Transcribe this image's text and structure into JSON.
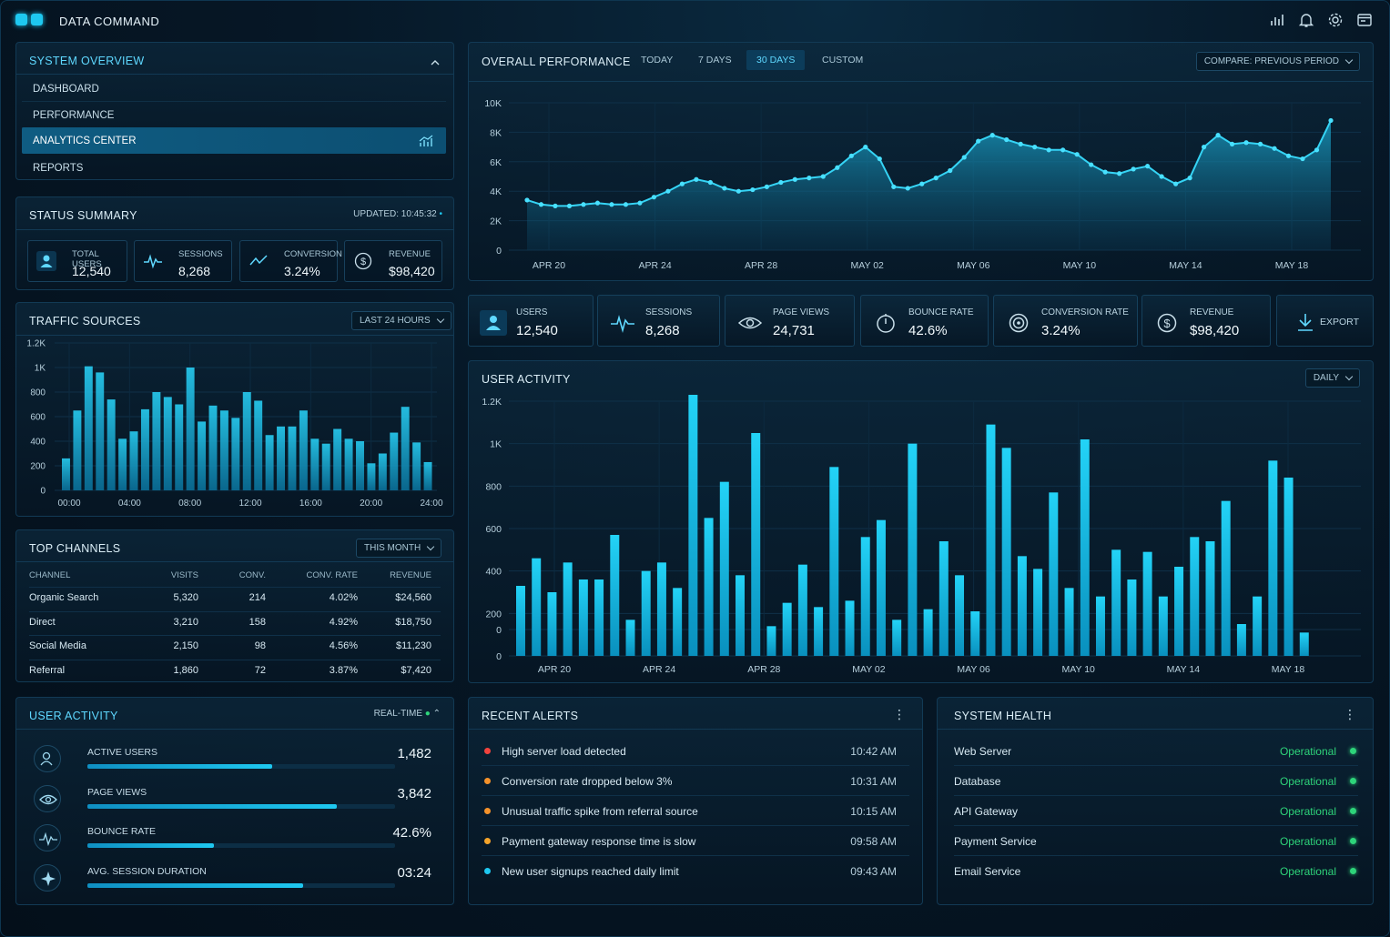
{
  "app": {
    "title": "DATA COMMAND"
  },
  "topbar": {
    "icons": [
      "bar-chart-icon",
      "bell-icon",
      "gear-icon",
      "window-icon"
    ]
  },
  "nav": {
    "title": "SYSTEM OVERVIEW",
    "items": [
      {
        "label": "DASHBOARD",
        "active": false
      },
      {
        "label": "PERFORMANCE",
        "active": false
      },
      {
        "label": "ANALYTICS CENTER",
        "active": true
      },
      {
        "label": "REPORTS",
        "active": false
      }
    ]
  },
  "status": {
    "title": "STATUS SUMMARY",
    "updated": "UPDATED: 10:45:32",
    "items": [
      {
        "label": "TOTAL USERS",
        "value": "12,540",
        "icon": "user-icon"
      },
      {
        "label": "SESSIONS",
        "value": "8,268",
        "icon": "pulse-icon"
      },
      {
        "label": "CONVERSION",
        "value": "3.24%",
        "icon": "trend-icon"
      },
      {
        "label": "REVENUE",
        "value": "$98,420",
        "icon": "dollar-icon"
      }
    ]
  },
  "traffic": {
    "title": "TRAFFIC SOURCES",
    "range": "LAST 24 HOURS",
    "chart_data": {
      "type": "bar",
      "x_ticks": [
        "00:00",
        "04:00",
        "08:00",
        "12:00",
        "16:00",
        "20:00",
        "24:00"
      ],
      "y_ticks": [
        "0",
        "200",
        "400",
        "600",
        "800",
        "1K",
        "1.2K"
      ],
      "ylim": [
        0,
        1200
      ],
      "values": [
        260,
        650,
        1010,
        960,
        740,
        420,
        480,
        660,
        800,
        760,
        700,
        1000,
        560,
        690,
        650,
        590,
        800,
        730,
        450,
        520,
        520,
        650,
        420,
        380,
        500,
        420,
        400,
        220,
        300,
        470,
        680,
        390,
        230
      ]
    }
  },
  "channels": {
    "title": "TOP CHANNELS",
    "range": "THIS MONTH",
    "headers": [
      "CHANNEL",
      "VISITS",
      "CONV.",
      "CONV. RATE",
      "REVENUE"
    ],
    "rows": [
      [
        "Organic Search",
        "5,320",
        "214",
        "4.02%",
        "$24,560"
      ],
      [
        "Direct",
        "3,210",
        "158",
        "4.92%",
        "$18,750"
      ],
      [
        "Social Media",
        "2,150",
        "98",
        "4.56%",
        "$11,230"
      ],
      [
        "Referral",
        "1,860",
        "72",
        "3.87%",
        "$7,420"
      ]
    ]
  },
  "user_activity_rt": {
    "title": "USER ACTIVITY",
    "mode": "REAL-TIME",
    "items": [
      {
        "label": "ACTIVE USERS",
        "value": "1,482",
        "fill": 0.6,
        "icon": "users-icon"
      },
      {
        "label": "PAGE VIEWS",
        "value": "3,842",
        "fill": 0.81,
        "icon": "eye-icon"
      },
      {
        "label": "BOUNCE RATE",
        "value": "42.6%",
        "fill": 0.41,
        "icon": "pulse-icon"
      },
      {
        "label": "AVG. SESSION DURATION",
        "value": "03:24",
        "fill": 0.7,
        "icon": "sparkle-icon"
      }
    ]
  },
  "performance": {
    "title": "OVERALL PERFORMANCE",
    "tabs": [
      {
        "label": "TODAY",
        "active": false
      },
      {
        "label": "7 DAYS",
        "active": false
      },
      {
        "label": "30 DAYS",
        "active": true
      },
      {
        "label": "CUSTOM",
        "active": false
      }
    ],
    "compare": "COMPARE: PREVIOUS PERIOD",
    "chart_data": {
      "type": "area",
      "x_ticks": [
        "APR 20",
        "APR 24",
        "APR 28",
        "MAY 02",
        "MAY 06",
        "MAY 10",
        "MAY 14",
        "MAY 18"
      ],
      "y_ticks": [
        "0",
        "2K",
        "4K",
        "6K",
        "8K",
        "10K"
      ],
      "ylim": [
        0,
        10000
      ],
      "values": [
        3400,
        3100,
        3000,
        3000,
        3100,
        3200,
        3100,
        3100,
        3200,
        3600,
        4000,
        4500,
        4800,
        4600,
        4200,
        4000,
        4100,
        4300,
        4600,
        4800,
        4900,
        5000,
        5600,
        6400,
        7000,
        6200,
        4300,
        4200,
        4500,
        4900,
        5400,
        6300,
        7400,
        7800,
        7500,
        7200,
        7000,
        6800,
        6800,
        6500,
        5800,
        5300,
        5200,
        5500,
        5700,
        5000,
        4500,
        4900,
        7000,
        7800,
        7200,
        7300,
        7200,
        6900,
        6400,
        6200,
        6800,
        8800
      ]
    }
  },
  "kpis": [
    {
      "label": "USERS",
      "value": "12,540",
      "icon": "user-icon"
    },
    {
      "label": "SESSIONS",
      "value": "8,268",
      "icon": "pulse-icon"
    },
    {
      "label": "PAGE VIEWS",
      "value": "24,731",
      "icon": "eye-icon"
    },
    {
      "label": "BOUNCE RATE",
      "value": "42.6%",
      "icon": "timer-icon"
    },
    {
      "label": "CONVERSION RATE",
      "value": "3.24%",
      "icon": "target-icon"
    },
    {
      "label": "REVENUE",
      "value": "$98,420",
      "icon": "dollar-icon"
    },
    {
      "label": "EXPORT",
      "value": "",
      "icon": "download-icon"
    }
  ],
  "activity": {
    "title": "USER ACTIVITY",
    "range": "DAILY",
    "chart_data": {
      "type": "bar",
      "x_ticks": [
        "APR 20",
        "APR 24",
        "APR 28",
        "MAY 02",
        "MAY 06",
        "MAY 10",
        "MAY 14",
        "MAY 18"
      ],
      "y_ticks": [
        "0",
        "0",
        "200",
        "400",
        "600",
        "800",
        "1K",
        "1.2K"
      ],
      "ylim": [
        0,
        1200
      ],
      "values": [
        330,
        460,
        300,
        440,
        360,
        360,
        570,
        170,
        400,
        440,
        320,
        1230,
        650,
        820,
        380,
        1050,
        140,
        250,
        430,
        230,
        890,
        260,
        560,
        640,
        170,
        1000,
        220,
        540,
        380,
        210,
        1090,
        980,
        470,
        410,
        770,
        320,
        1020,
        280,
        500,
        360,
        490,
        280,
        420,
        560,
        540,
        730,
        150,
        280,
        920,
        840,
        110
      ]
    }
  },
  "alerts": {
    "title": "RECENT ALERTS",
    "items": [
      {
        "text": "High server load detected",
        "time": "10:42 AM",
        "color": "#f2433d"
      },
      {
        "text": "Conversion rate dropped below 3%",
        "time": "10:31 AM",
        "color": "#f5922a"
      },
      {
        "text": "Unusual traffic spike from referral source",
        "time": "10:15 AM",
        "color": "#f5922a"
      },
      {
        "text": "Payment gateway response time is slow",
        "time": "09:58 AM",
        "color": "#f5a42a"
      },
      {
        "text": "New user signups reached daily limit",
        "time": "09:43 AM",
        "color": "#1ec8f0"
      }
    ]
  },
  "health": {
    "title": "SYSTEM HEALTH",
    "items": [
      {
        "name": "Web Server",
        "status": "Operational"
      },
      {
        "name": "Database",
        "status": "Operational"
      },
      {
        "name": "API Gateway",
        "status": "Operational"
      },
      {
        "name": "Payment Service",
        "status": "Operational"
      },
      {
        "name": "Email Service",
        "status": "Operational"
      }
    ]
  },
  "colors": {
    "accent": "#1ec8f0",
    "ok": "#2ed47a",
    "panel_border": "#123a55"
  }
}
